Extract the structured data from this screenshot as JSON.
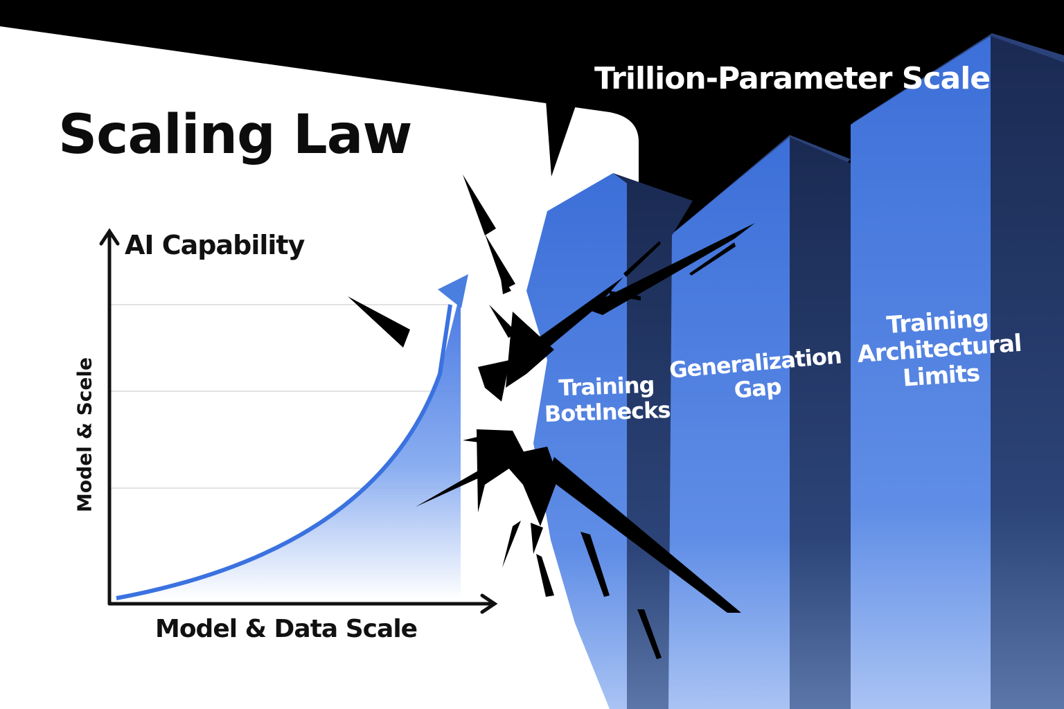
{
  "title": "Scaling Law",
  "top_title": "Trillion-Parameter Scale",
  "axes": {
    "y_label": "AI Capability",
    "x_label": "Model & Data Scale",
    "side_label": "Model & Scele"
  },
  "bars": [
    {
      "lines": [
        "Training",
        "Bottlnecks"
      ]
    },
    {
      "lines": [
        "Generalization",
        "Gap"
      ]
    },
    {
      "lines": [
        "Training",
        "Architectural",
        "Limits"
      ]
    }
  ],
  "colors": {
    "accent_blue": "#4a7fe0",
    "bar_front": "#3f72d8",
    "bar_side": "#1b2d57",
    "background_top": "#000000",
    "panel": "#ffffff"
  }
}
